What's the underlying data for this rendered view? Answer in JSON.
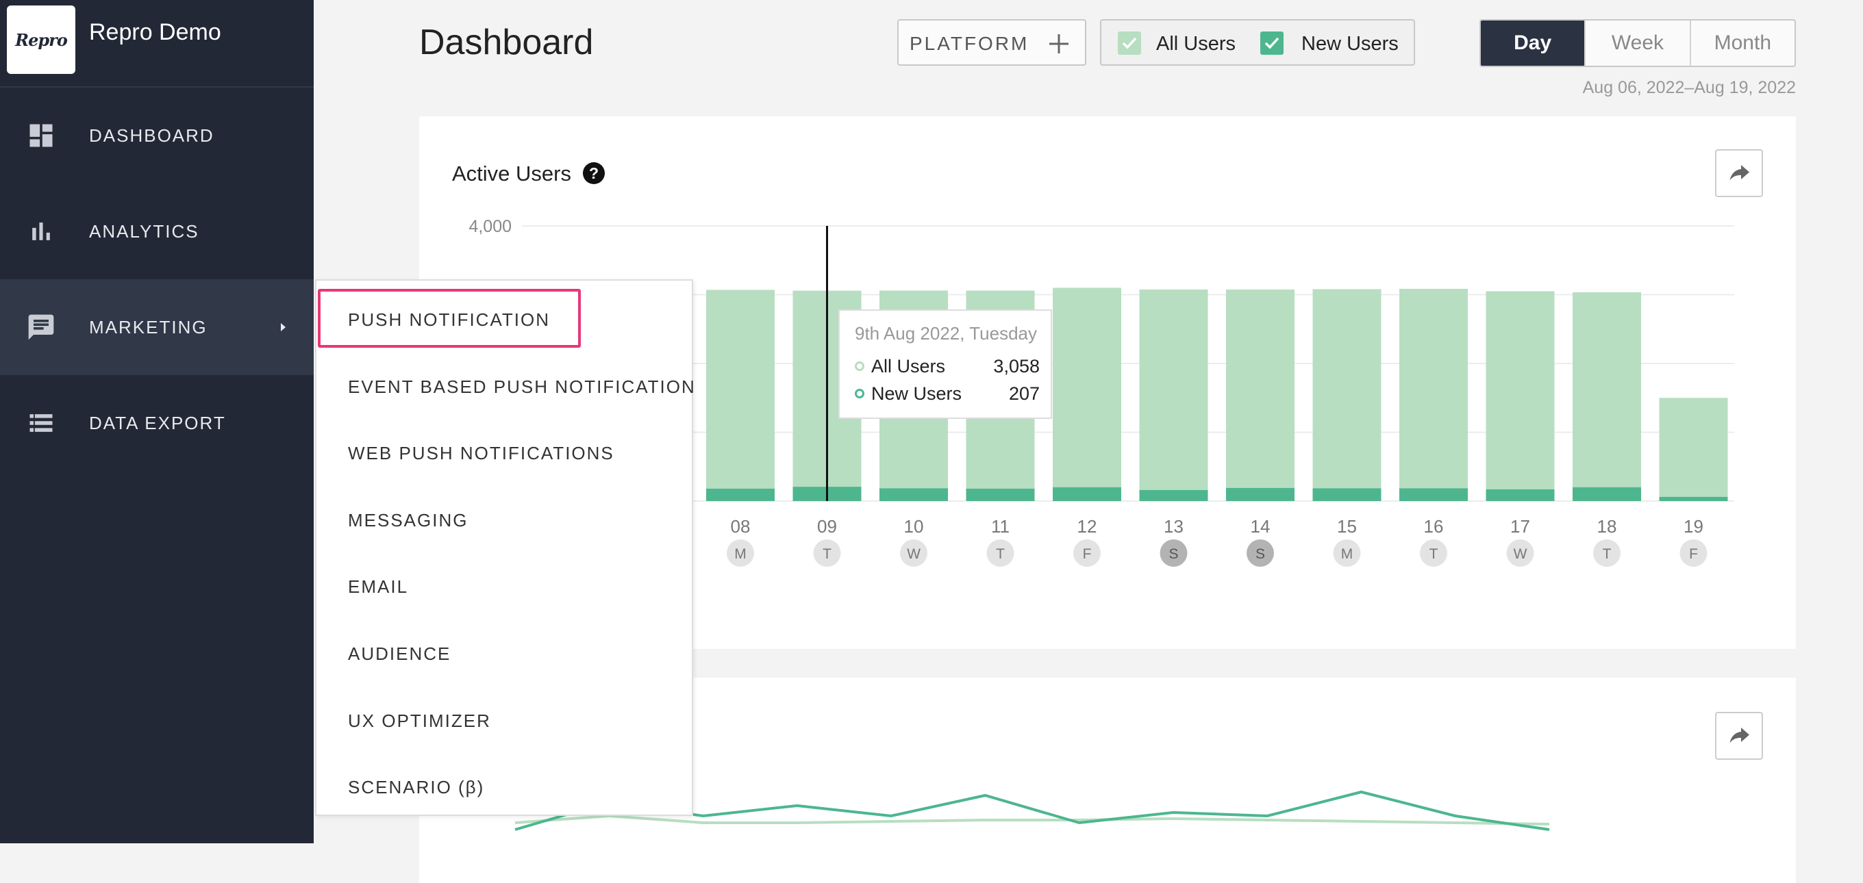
{
  "app": {
    "logo_text": "Repro",
    "name": "Repro Demo"
  },
  "sidebar": {
    "items": [
      {
        "label": "DASHBOARD",
        "icon": "dashboard-icon"
      },
      {
        "label": "ANALYTICS",
        "icon": "bar-chart-icon"
      },
      {
        "label": "MARKETING",
        "icon": "chat-icon",
        "active": true
      },
      {
        "label": "DATA EXPORT",
        "icon": "list-icon"
      }
    ]
  },
  "header": {
    "title": "Dashboard",
    "platform_label": "PLATFORM",
    "filters": [
      {
        "label": "All Users",
        "checked": true,
        "color": "#b7dec0"
      },
      {
        "label": "New Users",
        "checked": true,
        "color": "#4db68f"
      }
    ],
    "periods": [
      "Day",
      "Week",
      "Month"
    ],
    "active_period": "Day",
    "date_range": "Aug 06, 2022–Aug 19, 2022"
  },
  "card1": {
    "title": "Active Users"
  },
  "submenu": {
    "items": [
      "PUSH NOTIFICATION",
      "EVENT BASED PUSH NOTIFICATION",
      "WEB PUSH NOTIFICATIONS",
      "MESSAGING",
      "EMAIL",
      "AUDIENCE",
      "UX OPTIMIZER",
      "SCENARIO (β)"
    ],
    "highlighted": "PUSH NOTIFICATION"
  },
  "tooltip": {
    "title": "9th Aug 2022, Tuesday",
    "rows": [
      {
        "name": "All Users",
        "value": "3,058"
      },
      {
        "name": "New Users",
        "value": "207"
      }
    ]
  },
  "chart_data": [
    {
      "type": "bar",
      "title": "Active Users",
      "ylim": [
        0,
        4000
      ],
      "y_ticks_visible": [
        "4,000"
      ],
      "grid": true,
      "categories": [
        "08",
        "09",
        "10",
        "11",
        "12",
        "13",
        "14",
        "15",
        "16",
        "17",
        "18",
        "19"
      ],
      "day_letters": [
        "M",
        "T",
        "W",
        "T",
        "F",
        "S",
        "S",
        "M",
        "T",
        "W",
        "T",
        "F"
      ],
      "weekend": [
        false,
        false,
        false,
        false,
        false,
        true,
        true,
        false,
        false,
        false,
        false,
        false
      ],
      "series": [
        {
          "name": "All Users",
          "color": "#b7dec0",
          "values": [
            3070,
            3058,
            3060,
            3060,
            3100,
            3075,
            3075,
            3080,
            3085,
            3050,
            3035,
            1500
          ]
        },
        {
          "name": "New Users",
          "color": "#4db68f",
          "values": [
            180,
            207,
            185,
            180,
            200,
            160,
            190,
            185,
            185,
            170,
            200,
            60
          ]
        }
      ],
      "cursor_category": "09"
    },
    {
      "type": "line",
      "partially_visible": true,
      "series": [
        {
          "name": "All Users",
          "color": "#b7dec0",
          "values": [
            30,
            40,
            30,
            30,
            32,
            34,
            34,
            36,
            34,
            32,
            30,
            28
          ]
        },
        {
          "name": "New Users",
          "color": "#4db68f",
          "values": [
            20,
            60,
            40,
            55,
            40,
            70,
            30,
            45,
            40,
            75,
            40,
            20
          ]
        }
      ]
    }
  ],
  "colors": {
    "sidebar_bg": "#222836",
    "sidebar_active": "#313848",
    "accent_green": "#4db68f",
    "light_green": "#b7dec0",
    "highlight_pink": "#e53878"
  }
}
